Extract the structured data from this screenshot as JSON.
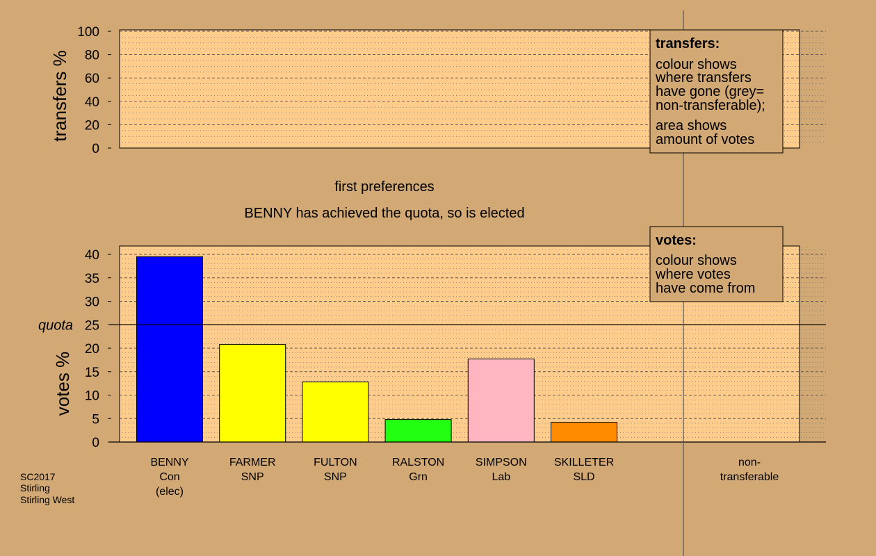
{
  "colors": {
    "background": "#d2a874",
    "plot_panel": "#ffcc8c",
    "axis_line": "#000000",
    "divider": "#555555"
  },
  "captions": {
    "stage": "first preferences",
    "status": "BENNY has achieved the quota, so is elected"
  },
  "legends": {
    "transfers": {
      "heading": "transfers:",
      "para1": [
        "colour shows",
        "where transfers",
        "have gone (grey=",
        "non-transferable);"
      ],
      "para2": [
        "area shows",
        "amount of votes"
      ]
    },
    "votes": {
      "heading": "votes:",
      "para1": [
        "colour shows",
        "where votes",
        "have come from"
      ]
    }
  },
  "footer": [
    "SC2017",
    "Stirling",
    "Stirling West"
  ],
  "chart_data": [
    {
      "type": "bar",
      "ylabel": "transfers %",
      "ylim": [
        0,
        100
      ],
      "yticks": [
        0,
        20,
        40,
        60,
        80,
        100
      ],
      "categories": [],
      "values": []
    },
    {
      "type": "bar",
      "ylabel": "votes %",
      "ylim": [
        0,
        40
      ],
      "yticks": [
        0,
        5,
        10,
        15,
        20,
        25,
        30,
        35,
        40
      ],
      "quota": 25,
      "quota_label": "quota",
      "categories": [
        {
          "name": "BENNY",
          "party": "Con",
          "note": "(elec)",
          "color": "#0000ff"
        },
        {
          "name": "FARMER",
          "party": "SNP",
          "note": "",
          "color": "#ffff00"
        },
        {
          "name": "FULTON",
          "party": "SNP",
          "note": "",
          "color": "#ffff00"
        },
        {
          "name": "RALSTON",
          "party": "Grn",
          "note": "",
          "color": "#22ff11"
        },
        {
          "name": "SIMPSON",
          "party": "Lab",
          "note": "",
          "color": "#ffb6c1"
        },
        {
          "name": "SKILLETER",
          "party": "SLD",
          "note": "",
          "color": "#ff8c00"
        }
      ],
      "values": [
        39.5,
        20.8,
        12.8,
        4.8,
        17.7,
        4.2
      ],
      "non_transferable": {
        "label": [
          "non-",
          "transferable"
        ],
        "value": 0
      }
    }
  ]
}
